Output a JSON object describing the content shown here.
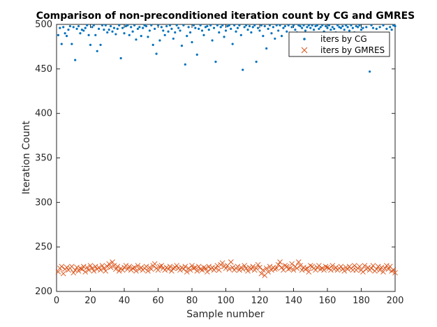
{
  "chart_data": {
    "type": "scatter",
    "title": "Comparison of non-preconditioned iteration count by CG and GMRES",
    "xlabel": "Sample number",
    "ylabel": "Iteration Count",
    "xlim": [
      0,
      200
    ],
    "ylim": [
      200,
      500
    ],
    "xticks": [
      0,
      20,
      40,
      60,
      80,
      100,
      120,
      140,
      160,
      180,
      200
    ],
    "yticks": [
      200,
      250,
      300,
      350,
      400,
      450,
      500
    ],
    "grid": false,
    "legend_position": "top-right",
    "series": [
      {
        "name": "iters by CG",
        "marker": "dot",
        "color": "#0072BD",
        "x": [
          1,
          2,
          3,
          4,
          5,
          6,
          7,
          8,
          9,
          10,
          11,
          12,
          13,
          14,
          15,
          16,
          17,
          18,
          19,
          20,
          21,
          22,
          23,
          24,
          25,
          26,
          27,
          28,
          29,
          30,
          31,
          32,
          33,
          34,
          35,
          36,
          37,
          38,
          39,
          40,
          41,
          42,
          43,
          44,
          45,
          46,
          47,
          48,
          49,
          50,
          51,
          52,
          53,
          54,
          55,
          56,
          57,
          58,
          59,
          60,
          61,
          62,
          63,
          64,
          65,
          66,
          67,
          68,
          69,
          70,
          71,
          72,
          73,
          74,
          75,
          76,
          77,
          78,
          79,
          80,
          81,
          82,
          83,
          84,
          85,
          86,
          87,
          88,
          89,
          90,
          91,
          92,
          93,
          94,
          95,
          96,
          97,
          98,
          99,
          100,
          101,
          102,
          103,
          104,
          105,
          106,
          107,
          108,
          109,
          110,
          111,
          112,
          113,
          114,
          115,
          116,
          117,
          118,
          119,
          120,
          121,
          122,
          123,
          124,
          125,
          126,
          127,
          128,
          129,
          130,
          131,
          132,
          133,
          134,
          135,
          136,
          137,
          138,
          139,
          140,
          141,
          142,
          143,
          144,
          145,
          146,
          147,
          148,
          149,
          150,
          151,
          152,
          153,
          154,
          155,
          156,
          157,
          158,
          159,
          160,
          161,
          162,
          163,
          164,
          165,
          166,
          167,
          168,
          169,
          170,
          171,
          172,
          173,
          174,
          175,
          176,
          177,
          178,
          179,
          180,
          181,
          182,
          183,
          184,
          185,
          186,
          187,
          188,
          189,
          190,
          191,
          192,
          193,
          194,
          195,
          196,
          197,
          198,
          199,
          200
        ],
        "y": [
          488,
          496,
          478,
          497,
          490,
          487,
          494,
          498,
          478,
          497,
          460,
          495,
          498,
          490,
          494,
          493,
          496,
          499,
          488,
          477,
          497,
          499,
          488,
          470,
          495,
          477,
          499,
          494,
          499,
          491,
          494,
          498,
          492,
          496,
          489,
          495,
          499,
          462,
          496,
          490,
          498,
          499,
          488,
          497,
          492,
          499,
          483,
          495,
          497,
          487,
          496,
          499,
          498,
          486,
          493,
          499,
          477,
          495,
          467,
          499,
          482,
          497,
          493,
          488,
          498,
          492,
          499,
          495,
          484,
          491,
          499,
          496,
          493,
          476,
          499,
          455,
          487,
          497,
          491,
          480,
          499,
          496,
          466,
          495,
          499,
          493,
          488,
          497,
          498,
          494,
          499,
          482,
          496,
          458,
          499,
          491,
          497,
          499,
          486,
          493,
          498,
          499,
          495,
          478,
          499,
          492,
          496,
          499,
          488,
          449,
          497,
          499,
          494,
          498,
          491,
          497,
          499,
          458,
          496,
          493,
          499,
          487,
          498,
          473,
          495,
          499,
          490,
          497,
          484,
          499,
          493,
          499,
          487,
          496,
          498,
          492,
          499,
          483,
          497,
          499,
          494,
          491,
          499,
          498,
          496,
          499,
          493,
          497,
          499,
          496,
          499,
          494,
          498,
          499,
          495,
          497,
          499,
          492,
          498,
          496,
          499,
          494,
          497,
          495,
          491,
          499,
          497,
          496,
          498,
          494,
          499,
          497,
          493,
          499,
          496,
          491,
          498,
          497,
          499,
          494,
          496,
          490,
          497,
          488,
          447,
          499,
          496,
          473,
          495,
          481,
          497,
          487,
          499,
          477,
          495,
          468,
          497,
          494,
          499,
          498
        ]
      },
      {
        "name": "iters by GMRES",
        "marker": "x",
        "color": "#D95319",
        "x": [
          1,
          2,
          3,
          4,
          5,
          6,
          7,
          8,
          9,
          10,
          11,
          12,
          13,
          14,
          15,
          16,
          17,
          18,
          19,
          20,
          21,
          22,
          23,
          24,
          25,
          26,
          27,
          28,
          29,
          30,
          31,
          32,
          33,
          34,
          35,
          36,
          37,
          38,
          39,
          40,
          41,
          42,
          43,
          44,
          45,
          46,
          47,
          48,
          49,
          50,
          51,
          52,
          53,
          54,
          55,
          56,
          57,
          58,
          59,
          60,
          61,
          62,
          63,
          64,
          65,
          66,
          67,
          68,
          69,
          70,
          71,
          72,
          73,
          74,
          75,
          76,
          77,
          78,
          79,
          80,
          81,
          82,
          83,
          84,
          85,
          86,
          87,
          88,
          89,
          90,
          91,
          92,
          93,
          94,
          95,
          96,
          97,
          98,
          99,
          100,
          101,
          102,
          103,
          104,
          105,
          106,
          107,
          108,
          109,
          110,
          111,
          112,
          113,
          114,
          115,
          116,
          117,
          118,
          119,
          120,
          121,
          122,
          123,
          124,
          125,
          126,
          127,
          128,
          129,
          130,
          131,
          132,
          133,
          134,
          135,
          136,
          137,
          138,
          139,
          140,
          141,
          142,
          143,
          144,
          145,
          146,
          147,
          148,
          149,
          150,
          151,
          152,
          153,
          154,
          155,
          156,
          157,
          158,
          159,
          160,
          161,
          162,
          163,
          164,
          165,
          166,
          167,
          168,
          169,
          170,
          171,
          172,
          173,
          174,
          175,
          176,
          177,
          178,
          179,
          180,
          181,
          182,
          183,
          184,
          185,
          186,
          187,
          188,
          189,
          190,
          191,
          192,
          193,
          194,
          195,
          196,
          197,
          198,
          199,
          200
        ],
        "y": [
          222,
          226,
          228,
          220,
          225,
          227,
          224,
          226,
          228,
          221,
          224,
          227,
          223,
          226,
          225,
          228,
          222,
          227,
          224,
          229,
          226,
          223,
          228,
          225,
          227,
          224,
          229,
          226,
          223,
          228,
          231,
          227,
          233,
          229,
          225,
          228,
          223,
          226,
          224,
          227,
          229,
          225,
          228,
          224,
          226,
          227,
          223,
          229,
          225,
          227,
          224,
          226,
          228,
          223,
          227,
          225,
          229,
          231,
          226,
          224,
          228,
          229,
          226,
          224,
          227,
          225,
          228,
          223,
          226,
          227,
          229,
          226,
          224,
          227,
          225,
          228,
          222,
          226,
          224,
          229,
          226,
          227,
          223,
          228,
          225,
          224,
          227,
          226,
          222,
          228,
          225,
          227,
          224,
          226,
          229,
          224,
          230,
          232,
          228,
          226,
          229,
          225,
          233,
          227,
          224,
          226,
          228,
          224,
          227,
          225,
          229,
          226,
          223,
          227,
          225,
          228,
          224,
          226,
          230,
          227,
          220,
          224,
          218,
          226,
          222,
          228,
          224,
          227,
          225,
          226,
          230,
          233,
          227,
          224,
          229,
          228,
          225,
          226,
          231,
          224,
          228,
          226,
          233,
          229,
          224,
          227,
          225,
          226,
          222,
          229,
          228,
          226,
          224,
          227,
          229,
          225,
          226,
          224,
          228,
          227,
          226,
          224,
          229,
          225,
          227,
          224,
          226,
          228,
          225,
          223,
          227,
          225,
          228,
          226,
          224,
          229,
          224,
          226,
          228,
          224,
          222,
          229,
          225,
          227,
          224,
          226,
          229,
          223,
          225,
          228,
          224,
          227,
          222,
          226,
          229,
          225,
          228,
          223,
          224,
          221
        ]
      }
    ]
  }
}
